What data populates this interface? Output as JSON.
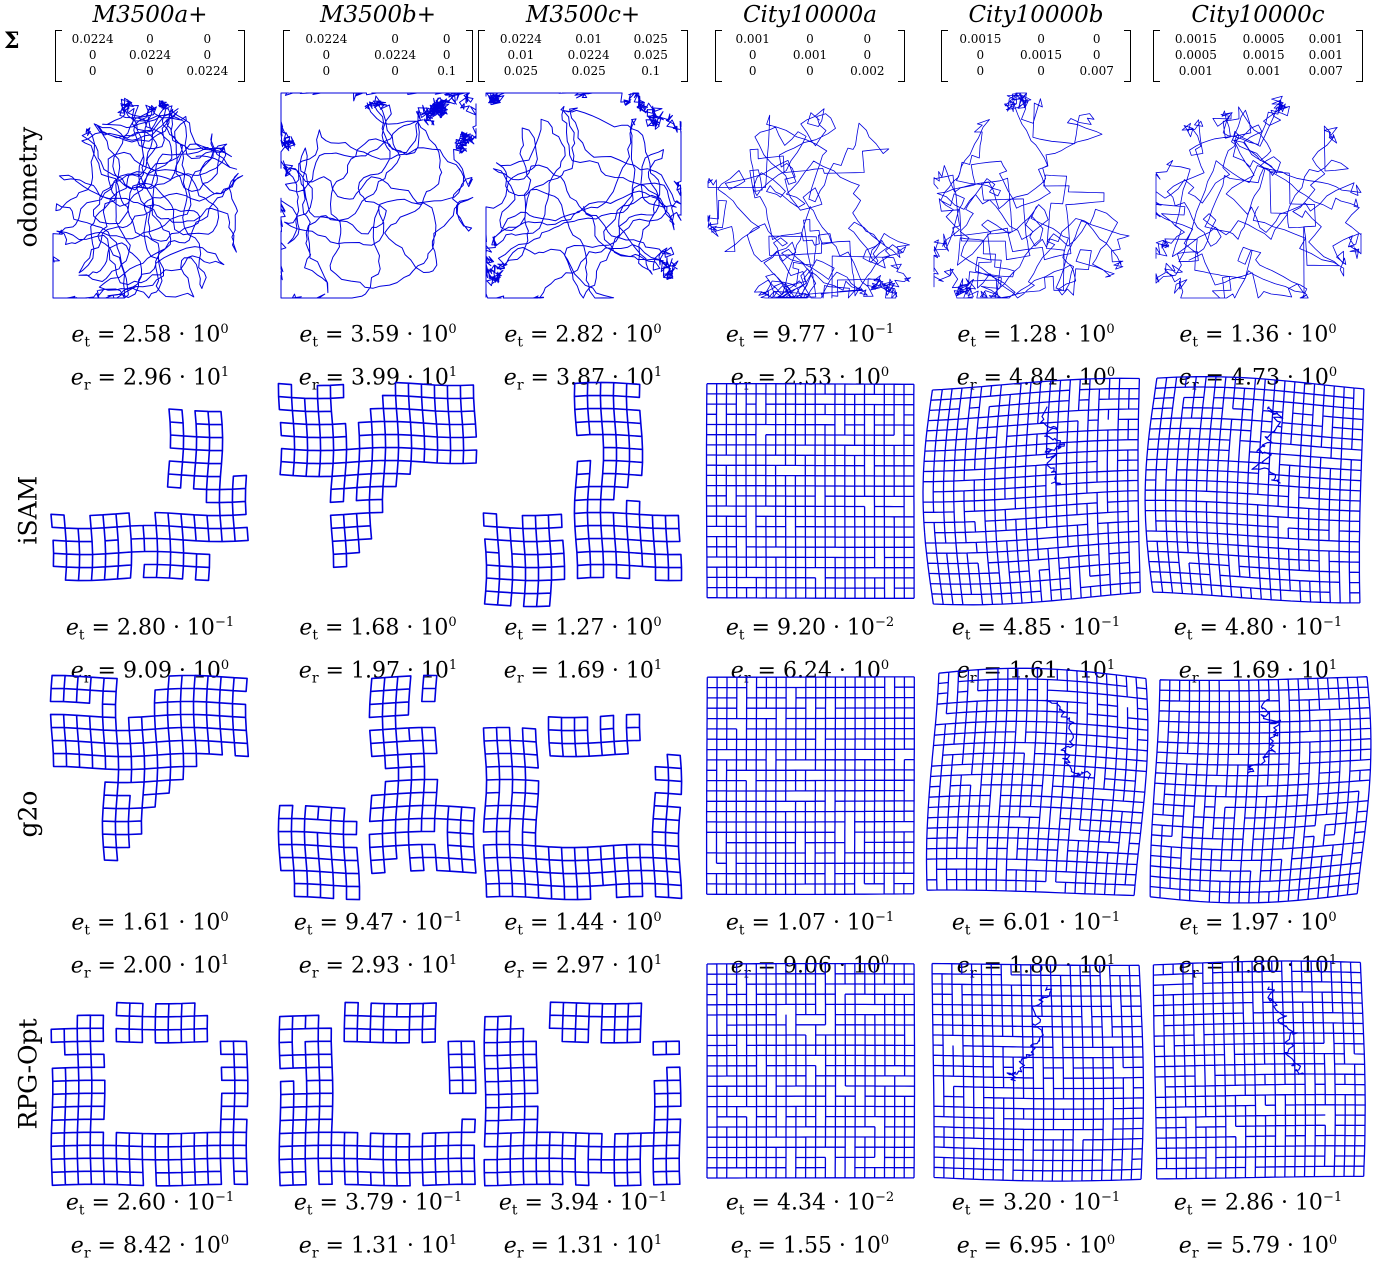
{
  "columns": [
    {
      "title": "M3500a+",
      "sigma": [
        [
          "0.0224",
          "0",
          "0"
        ],
        [
          "0",
          "0.0224",
          "0"
        ],
        [
          "0",
          "0",
          "0.0224"
        ]
      ]
    },
    {
      "title": "M3500b+",
      "sigma": [
        [
          "0.0224",
          "0",
          "0"
        ],
        [
          "0",
          "0.0224",
          "0"
        ],
        [
          "0",
          "0",
          "0.1"
        ]
      ]
    },
    {
      "title": "M3500c+",
      "sigma": [
        [
          "0.0224",
          "0.01",
          "0.025"
        ],
        [
          "0.01",
          "0.0224",
          "0.025"
        ],
        [
          "0.025",
          "0.025",
          "0.1"
        ]
      ]
    },
    {
      "title": "City10000a",
      "sigma": [
        [
          "0.001",
          "0",
          "0"
        ],
        [
          "0",
          "0.001",
          "0"
        ],
        [
          "0",
          "0",
          "0.002"
        ]
      ]
    },
    {
      "title": "City10000b",
      "sigma": [
        [
          "0.0015",
          "0",
          "0"
        ],
        [
          "0",
          "0.0015",
          "0"
        ],
        [
          "0",
          "0",
          "0.007"
        ]
      ]
    },
    {
      "title": "City10000c",
      "sigma": [
        [
          "0.0015",
          "0.0005",
          "0.001"
        ],
        [
          "0.0005",
          "0.0015",
          "0.001"
        ],
        [
          "0.001",
          "0.001",
          "0.007"
        ]
      ]
    }
  ],
  "sigma_label": "Σ",
  "rows": [
    {
      "label": "odometry",
      "errors": [
        {
          "et": "2.58",
          "et_exp": "0",
          "er": "2.96",
          "er_exp": "1"
        },
        {
          "et": "3.59",
          "et_exp": "0",
          "er": "3.99",
          "er_exp": "1"
        },
        {
          "et": "2.82",
          "et_exp": "0",
          "er": "3.87",
          "er_exp": "1"
        },
        {
          "et": "9.77",
          "et_exp": "−1",
          "er": "2.53",
          "er_exp": "0"
        },
        {
          "et": "1.28",
          "et_exp": "0",
          "er": "4.84",
          "er_exp": "0"
        },
        {
          "et": "1.36",
          "et_exp": "0",
          "er": "4.73",
          "er_exp": "0"
        }
      ]
    },
    {
      "label": "iSAM",
      "errors": [
        {
          "et": "2.80",
          "et_exp": "−1",
          "er": "9.09",
          "er_exp": "0"
        },
        {
          "et": "1.68",
          "et_exp": "0",
          "er": "1.97",
          "er_exp": "1"
        },
        {
          "et": "1.27",
          "et_exp": "0",
          "er": "1.69",
          "er_exp": "1"
        },
        {
          "et": "9.20",
          "et_exp": "−2",
          "er": "6.24",
          "er_exp": "0"
        },
        {
          "et": "4.85",
          "et_exp": "−1",
          "er": "1.61",
          "er_exp": "1"
        },
        {
          "et": "4.80",
          "et_exp": "−1",
          "er": "1.69",
          "er_exp": "1"
        }
      ]
    },
    {
      "label": "g2o",
      "errors": [
        {
          "et": "1.61",
          "et_exp": "0",
          "er": "2.00",
          "er_exp": "1"
        },
        {
          "et": "9.47",
          "et_exp": "−1",
          "er": "2.93",
          "er_exp": "1"
        },
        {
          "et": "1.44",
          "et_exp": "0",
          "er": "2.97",
          "er_exp": "1"
        },
        {
          "et": "1.07",
          "et_exp": "−1",
          "er": "9.06",
          "er_exp": "0"
        },
        {
          "et": "6.01",
          "et_exp": "−1",
          "er": "1.80",
          "er_exp": "1"
        },
        {
          "et": "1.97",
          "et_exp": "0",
          "er": "1.80",
          "er_exp": "1"
        }
      ]
    },
    {
      "label": "RPG-Opt",
      "errors": [
        {
          "et": "2.60",
          "et_exp": "−1",
          "er": "8.42",
          "er_exp": "0"
        },
        {
          "et": "3.79",
          "et_exp": "−1",
          "er": "1.31",
          "er_exp": "1"
        },
        {
          "et": "3.94",
          "et_exp": "−1",
          "er": "1.31",
          "er_exp": "1"
        },
        {
          "et": "4.34",
          "et_exp": "−2",
          "er": "1.55",
          "er_exp": "0"
        },
        {
          "et": "3.20",
          "et_exp": "−1",
          "er": "6.95",
          "er_exp": "0"
        },
        {
          "et": "2.86",
          "et_exp": "−1",
          "er": "5.79",
          "er_exp": "0"
        }
      ]
    }
  ],
  "symbols": {
    "e": "e",
    "t": "t",
    "r": "r",
    "eq": " = ",
    "dot": " · ",
    "ten": "10"
  },
  "colors": {
    "trajectory": "#0000dd"
  }
}
